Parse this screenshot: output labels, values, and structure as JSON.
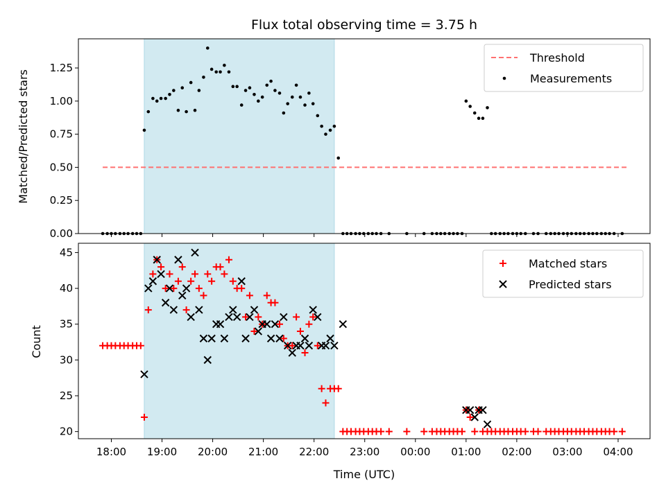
{
  "chart_data": {
    "type": "scatter",
    "title": "Flux total observing time = 3.75 h",
    "xlabel": "Time (UTC)",
    "x_unit": "hours",
    "x_tick_labels": [
      "18:00",
      "19:00",
      "20:00",
      "21:00",
      "22:00",
      "23:00",
      "00:00",
      "01:00",
      "02:00",
      "03:00",
      "04:00"
    ],
    "x_tick_values": [
      18,
      19,
      20,
      21,
      22,
      23,
      24,
      25,
      26,
      27,
      28
    ],
    "xlim": [
      17.35,
      28.63
    ],
    "shaded_region": {
      "x": [
        18.65,
        22.4
      ],
      "color": "#add8e6"
    },
    "panels": [
      {
        "ylabel": "Matched/Predicted stars",
        "ylim": [
          0,
          1.47
        ],
        "y_tick_values": [
          0,
          0.25,
          0.5,
          0.75,
          1.0,
          1.25
        ],
        "y_tick_labels": [
          "0.00",
          "0.25",
          "0.50",
          "0.75",
          "1.00",
          "1.25"
        ],
        "legend_position": "top-right",
        "series": [
          {
            "name": "Threshold",
            "kind": "line",
            "style": "dashed",
            "color": "#ff7070",
            "x": [
              17.83,
              28.17
            ],
            "values": [
              0.5,
              0.5
            ]
          },
          {
            "name": "Measurements",
            "kind": "dot",
            "color": "#000000",
            "x": [
              17.83,
              17.92,
              18.0,
              18.08,
              18.17,
              18.25,
              18.33,
              18.42,
              18.5,
              18.58,
              18.65,
              18.73,
              18.82,
              18.9,
              18.98,
              19.07,
              19.15,
              19.23,
              19.32,
              19.4,
              19.48,
              19.57,
              19.65,
              19.73,
              19.82,
              19.9,
              19.98,
              20.07,
              20.15,
              20.23,
              20.32,
              20.4,
              20.48,
              20.57,
              20.65,
              20.73,
              20.82,
              20.9,
              20.98,
              21.07,
              21.15,
              21.23,
              21.32,
              21.4,
              21.48,
              21.57,
              21.65,
              21.73,
              21.82,
              21.9,
              21.98,
              22.07,
              22.15,
              22.23,
              22.32,
              22.4,
              22.48,
              22.57,
              22.65,
              22.73,
              22.82,
              22.9,
              22.98,
              23.07,
              23.15,
              23.23,
              23.32,
              23.48,
              23.83,
              24.17,
              24.33,
              24.42,
              24.5,
              24.58,
              24.67,
              24.75,
              24.83,
              24.92,
              25.0,
              25.08,
              25.17,
              25.25,
              25.33,
              25.42,
              25.5,
              25.58,
              25.67,
              25.75,
              25.83,
              25.92,
              26.0,
              26.08,
              26.17,
              26.33,
              26.42,
              26.58,
              26.67,
              26.75,
              26.83,
              26.92,
              27.0,
              27.08,
              27.17,
              27.25,
              27.33,
              27.42,
              27.5,
              27.58,
              27.67,
              27.75,
              27.83,
              27.92,
              28.08
            ],
            "values": [
              0,
              0,
              0,
              0,
              0,
              0,
              0,
              0,
              0,
              0,
              0.78,
              0.92,
              1.02,
              1.0,
              1.02,
              1.02,
              1.05,
              1.08,
              0.93,
              1.1,
              0.92,
              1.14,
              0.93,
              1.08,
              1.18,
              1.4,
              1.24,
              1.22,
              1.22,
              1.27,
              1.22,
              1.11,
              1.11,
              0.97,
              1.08,
              1.1,
              1.05,
              1.0,
              1.03,
              1.12,
              1.15,
              1.08,
              1.06,
              0.91,
              0.98,
              1.03,
              1.12,
              1.03,
              0.97,
              1.06,
              0.98,
              0.89,
              0.81,
              0.75,
              0.78,
              0.81,
              0.57,
              0,
              0,
              0,
              0,
              0,
              0,
              0,
              0,
              0,
              0,
              0,
              0,
              0,
              0,
              0,
              0,
              0,
              0,
              0,
              0,
              0,
              1.0,
              0.96,
              0.91,
              0.87,
              0.87,
              0.95,
              0,
              0,
              0,
              0,
              0,
              0,
              0,
              0,
              0,
              0,
              0,
              0,
              0,
              0,
              0,
              0,
              0,
              0,
              0,
              0,
              0,
              0,
              0,
              0,
              0,
              0,
              0,
              0,
              0
            ]
          }
        ]
      },
      {
        "ylabel": "Count",
        "ylim": [
          19.0,
          46.3
        ],
        "y_tick_values": [
          20,
          25,
          30,
          35,
          40,
          45
        ],
        "y_tick_labels": [
          "20",
          "25",
          "30",
          "35",
          "40",
          "45"
        ],
        "legend_position": "top-right",
        "series": [
          {
            "name": "Matched stars",
            "kind": "plus",
            "color": "#ff0000",
            "x": [
              17.83,
              17.92,
              18.0,
              18.08,
              18.17,
              18.25,
              18.33,
              18.42,
              18.5,
              18.58,
              18.65,
              18.73,
              18.82,
              18.9,
              18.98,
              19.07,
              19.15,
              19.23,
              19.32,
              19.4,
              19.48,
              19.57,
              19.65,
              19.73,
              19.82,
              19.9,
              19.98,
              20.07,
              20.15,
              20.23,
              20.32,
              20.4,
              20.48,
              20.57,
              20.65,
              20.73,
              20.82,
              20.9,
              20.98,
              21.07,
              21.15,
              21.23,
              21.32,
              21.4,
              21.48,
              21.57,
              21.65,
              21.73,
              21.82,
              21.9,
              21.98,
              22.07,
              22.15,
              22.23,
              22.32,
              22.4,
              22.48,
              22.57,
              22.65,
              22.73,
              22.82,
              22.9,
              22.98,
              23.07,
              23.15,
              23.23,
              23.32,
              23.48,
              23.83,
              24.17,
              24.33,
              24.42,
              24.5,
              24.58,
              24.67,
              24.75,
              24.83,
              24.92,
              25.0,
              25.08,
              25.17,
              25.25,
              25.33,
              25.42,
              25.5,
              25.58,
              25.67,
              25.75,
              25.83,
              25.92,
              26.0,
              26.08,
              26.17,
              26.33,
              26.42,
              26.58,
              26.67,
              26.75,
              26.83,
              26.92,
              27.0,
              27.08,
              27.17,
              27.25,
              27.33,
              27.42,
              27.5,
              27.58,
              27.67,
              27.75,
              27.83,
              27.92,
              28.08
            ],
            "values": [
              32,
              32,
              32,
              32,
              32,
              32,
              32,
              32,
              32,
              32,
              22,
              37,
              42,
              44,
              43,
              40,
              42,
              40,
              41,
              43,
              37,
              41,
              42,
              40,
              39,
              42,
              41,
              43,
              43,
              42,
              44,
              41,
              40,
              40,
              36,
              39,
              34,
              36,
              35,
              39,
              38,
              38,
              35,
              33,
              32,
              32,
              36,
              34,
              31,
              35,
              36,
              32,
              26,
              24,
              26,
              26,
              26,
              20,
              20,
              20,
              20,
              20,
              20,
              20,
              20,
              20,
              20,
              20,
              20,
              20,
              20,
              20,
              20,
              20,
              20,
              20,
              20,
              20,
              23,
              22,
              20,
              23,
              20,
              20,
              20,
              20,
              20,
              20,
              20,
              20,
              20,
              20,
              20,
              20,
              20,
              20,
              20,
              20,
              20,
              20,
              20,
              20,
              20,
              20,
              20,
              20,
              20,
              20,
              20,
              20,
              20,
              20,
              20
            ]
          },
          {
            "name": "Predicted stars",
            "kind": "cross",
            "color": "#000000",
            "x": [
              18.65,
              18.73,
              18.82,
              18.9,
              18.98,
              19.07,
              19.15,
              19.23,
              19.32,
              19.4,
              19.48,
              19.57,
              19.65,
              19.73,
              19.82,
              19.9,
              19.98,
              20.07,
              20.15,
              20.23,
              20.32,
              20.4,
              20.48,
              20.57,
              20.65,
              20.73,
              20.82,
              20.9,
              20.98,
              21.07,
              21.15,
              21.23,
              21.32,
              21.4,
              21.48,
              21.57,
              21.65,
              21.73,
              21.82,
              21.9,
              21.98,
              22.07,
              22.15,
              22.23,
              22.32,
              22.4,
              22.57,
              25.0,
              25.08,
              25.17,
              25.25,
              25.33,
              25.42
            ],
            "values": [
              28,
              40,
              41,
              44,
              42,
              38,
              40,
              37,
              44,
              39,
              40,
              36,
              45,
              37,
              33,
              30,
              33,
              35,
              35,
              33,
              36,
              37,
              36,
              41,
              33,
              36,
              37,
              34,
              35,
              35,
              33,
              35,
              33,
              36,
              32,
              31,
              32,
              32,
              33,
              32,
              37,
              36,
              32,
              32,
              33,
              32,
              35,
              23,
              23,
              22,
              23,
              23,
              21
            ]
          }
        ]
      }
    ]
  }
}
